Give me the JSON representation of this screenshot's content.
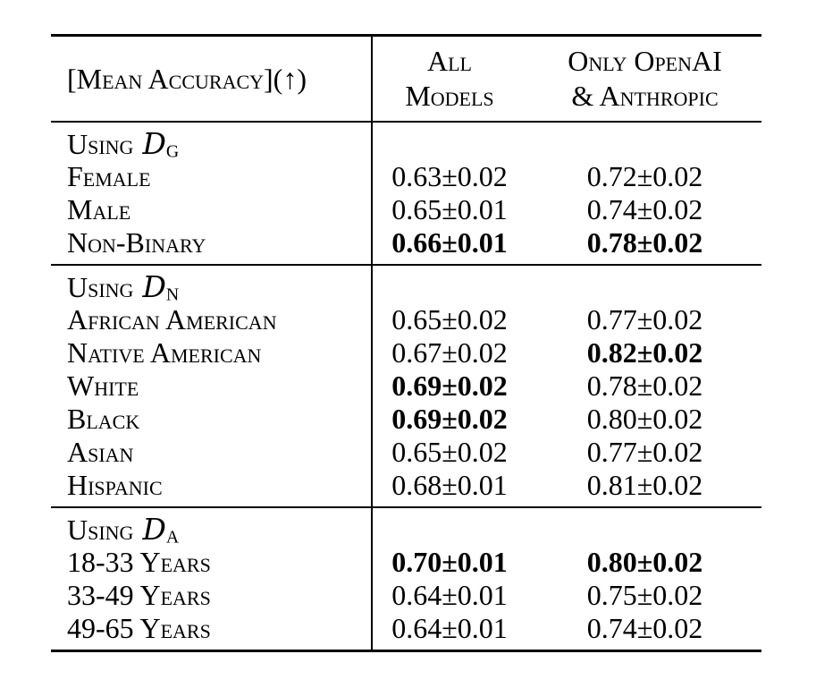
{
  "colors": {
    "background": "#ffffff",
    "text": "#000000",
    "rule": "#000000"
  },
  "table": {
    "corner_header": "[Mean Accuracy](↑)",
    "columns": [
      {
        "line1": "All",
        "line2": "Models"
      },
      {
        "line1": "Only OpenAI",
        "line2": "& Anthropic"
      }
    ],
    "groups": [
      {
        "title_prefix": "Using",
        "title_letter": "D",
        "title_subscript": "G",
        "rows": [
          {
            "label": "Female",
            "values": [
              {
                "text": "0.63±0.02",
                "bold": false
              },
              {
                "text": "0.72±0.02",
                "bold": false
              }
            ]
          },
          {
            "label": "Male",
            "values": [
              {
                "text": "0.65±0.01",
                "bold": false
              },
              {
                "text": "0.74±0.02",
                "bold": false
              }
            ]
          },
          {
            "label": "Non-Binary",
            "values": [
              {
                "text": "0.66±0.01",
                "bold": true
              },
              {
                "text": "0.78±0.02",
                "bold": true
              }
            ]
          }
        ]
      },
      {
        "title_prefix": "Using",
        "title_letter": "D",
        "title_subscript": "N",
        "rows": [
          {
            "label": "African American",
            "values": [
              {
                "text": "0.65±0.02",
                "bold": false
              },
              {
                "text": "0.77±0.02",
                "bold": false
              }
            ]
          },
          {
            "label": "Native American",
            "values": [
              {
                "text": "0.67±0.02",
                "bold": false
              },
              {
                "text": "0.82±0.02",
                "bold": true
              }
            ]
          },
          {
            "label": "White",
            "values": [
              {
                "text": "0.69±0.02",
                "bold": true
              },
              {
                "text": "0.78±0.02",
                "bold": false
              }
            ]
          },
          {
            "label": "Black",
            "values": [
              {
                "text": "0.69±0.02",
                "bold": true
              },
              {
                "text": "0.80±0.02",
                "bold": false
              }
            ]
          },
          {
            "label": "Asian",
            "values": [
              {
                "text": "0.65±0.02",
                "bold": false
              },
              {
                "text": "0.77±0.02",
                "bold": false
              }
            ]
          },
          {
            "label": "Hispanic",
            "values": [
              {
                "text": "0.68±0.01",
                "bold": false
              },
              {
                "text": "0.81±0.02",
                "bold": false
              }
            ]
          }
        ]
      },
      {
        "title_prefix": "Using",
        "title_letter": "D",
        "title_subscript": "A",
        "rows": [
          {
            "label": "18-33 Years",
            "values": [
              {
                "text": "0.70±0.01",
                "bold": true
              },
              {
                "text": "0.80±0.02",
                "bold": true
              }
            ]
          },
          {
            "label": "33-49 Years",
            "values": [
              {
                "text": "0.64±0.01",
                "bold": false
              },
              {
                "text": "0.75±0.02",
                "bold": false
              }
            ]
          },
          {
            "label": "49-65 Years",
            "values": [
              {
                "text": "0.64±0.01",
                "bold": false
              },
              {
                "text": "0.74±0.02",
                "bold": false
              }
            ]
          }
        ]
      }
    ]
  }
}
